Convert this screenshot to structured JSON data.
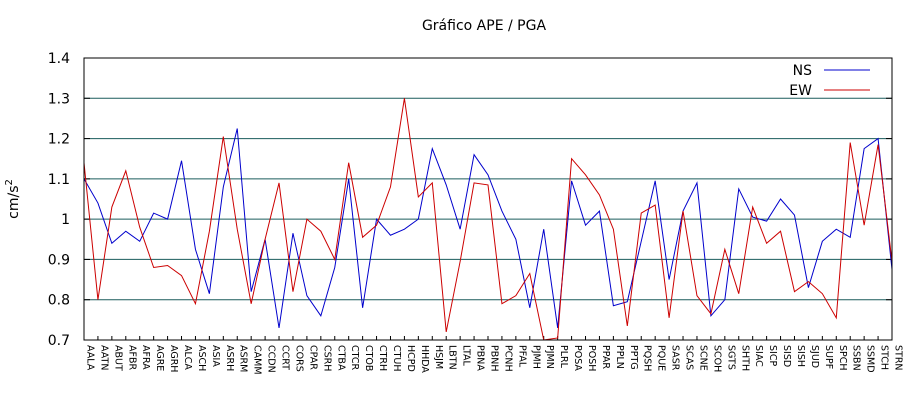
{
  "chart_data": {
    "type": "line",
    "title": "Gráfico  APE / PGA",
    "ylabel": "cm/s",
    "ylabel_sup": "2",
    "ylim": [
      0.7,
      1.4
    ],
    "yticks": [
      0.7,
      0.8,
      0.9,
      1,
      1.1,
      1.2,
      1.3,
      1.4
    ],
    "ytick_labels": [
      "0.7",
      "0.8",
      "0.9",
      "1",
      "1.1",
      "1.2",
      "1.3",
      "1.4"
    ],
    "grid": true,
    "legend_position": "top-right",
    "categories": [
      "AALA",
      "AATN",
      "ABUT",
      "AFBR",
      "AFRA",
      "AGRE",
      "AGRH",
      "ALCA",
      "ASCH",
      "ASIA",
      "ASRH",
      "ASRM",
      "CAMM",
      "CCDN",
      "CCRT",
      "CORS",
      "CPAR",
      "CSRH",
      "CTBA",
      "CTCR",
      "CTOB",
      "CTRH",
      "CTUH",
      "HCPD",
      "HHDA",
      "HSJM",
      "LBTN",
      "LTAL",
      "PBNA",
      "PBNH",
      "PCNH",
      "PFAL",
      "PJMH",
      "PJMN",
      "PLRL",
      "POSA",
      "POSH",
      "PPAR",
      "PPLN",
      "PPTG",
      "PQSH",
      "PQUE",
      "SASR",
      "SCAS",
      "SCNE",
      "SCOH",
      "SGTS",
      "SHTH",
      "SIAC",
      "SICP",
      "SISD",
      "SISH",
      "SJUD",
      "SUPF",
      "SPCH",
      "SSBN",
      "SSMD",
      "STCH",
      "STRN"
    ],
    "series": [
      {
        "name": "NS",
        "color": "#0000cc",
        "values": [
          1.1,
          1.04,
          0.94,
          0.97,
          0.945,
          1.015,
          1.0,
          1.145,
          0.925,
          0.815,
          1.08,
          1.225,
          0.82,
          0.95,
          0.73,
          0.965,
          0.81,
          0.76,
          0.88,
          1.1,
          0.78,
          1.0,
          0.96,
          0.975,
          1.0,
          1.175,
          1.085,
          0.975,
          1.16,
          1.11,
          1.02,
          0.95,
          0.78,
          0.975,
          0.73,
          1.095,
          0.985,
          1.02,
          0.785,
          0.795,
          0.945,
          1.095,
          0.85,
          1.02,
          1.09,
          0.76,
          0.8,
          1.075,
          1.005,
          0.995,
          1.05,
          1.01,
          0.83,
          0.945,
          0.975,
          0.955,
          1.175,
          1.2,
          0.875
        ]
      },
      {
        "name": "EW",
        "color": "#cc0000",
        "values": [
          1.14,
          0.8,
          1.03,
          1.12,
          0.98,
          0.88,
          0.885,
          0.86,
          0.79,
          0.97,
          1.205,
          0.975,
          0.79,
          0.95,
          1.09,
          0.82,
          1.0,
          0.97,
          0.9,
          1.14,
          0.955,
          0.985,
          1.08,
          1.3,
          1.055,
          1.09,
          0.72,
          0.895,
          1.09,
          1.085,
          0.79,
          0.81,
          0.865,
          0.7,
          0.705,
          1.15,
          1.11,
          1.06,
          0.975,
          0.735,
          1.015,
          1.035,
          0.755,
          1.02,
          0.81,
          0.765,
          0.925,
          0.815,
          1.03,
          0.94,
          0.97,
          0.82,
          0.845,
          0.815,
          0.755,
          1.19,
          0.985,
          1.185,
          0.895
        ]
      }
    ]
  }
}
